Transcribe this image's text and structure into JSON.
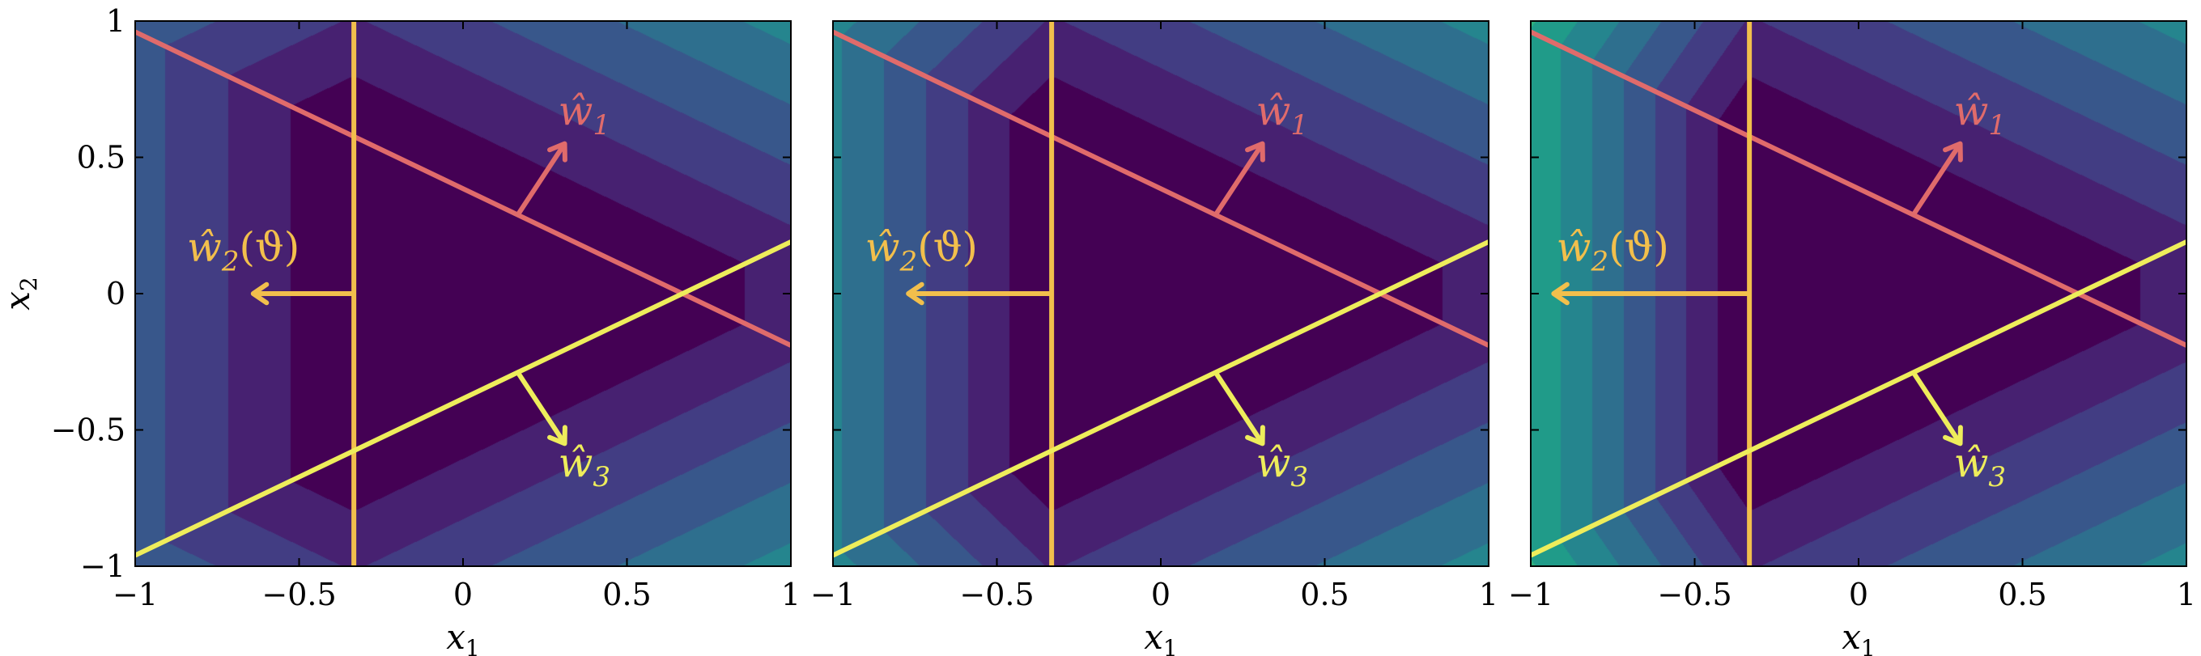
{
  "chart_data": [
    {
      "type": "heatmap",
      "panel": 1,
      "xlabel_main": "x",
      "xlabel_sub": "1",
      "ylabel_main": "x",
      "ylabel_sub": "2",
      "show_y_ticks": true,
      "xlim": [
        -1,
        1
      ],
      "ylim": [
        -1,
        1
      ],
      "x_ticks": [
        {
          "v": -1,
          "label": "−1"
        },
        {
          "v": -0.5,
          "label": "−0.5"
        },
        {
          "v": 0,
          "label": "0"
        },
        {
          "v": 0.5,
          "label": "0.5"
        },
        {
          "v": 1,
          "label": "1"
        }
      ],
      "y_ticks": [
        {
          "v": 1,
          "label": "1"
        },
        {
          "v": 0.5,
          "label": "0.5"
        },
        {
          "v": 0,
          "label": "0"
        },
        {
          "v": -0.5,
          "label": "−0.5"
        },
        {
          "v": -1,
          "label": "−1"
        }
      ],
      "w2_weight": 1.0,
      "contour_levels": 12,
      "color_max_value": 2.3,
      "lines": [
        {
          "name": "line-w1",
          "color": "#e06b6b",
          "x": [
            -1,
            1
          ],
          "y": [
            0.96,
            -0.19
          ]
        },
        {
          "name": "line-w2",
          "color": "#f2bf4c",
          "x": [
            -0.333,
            -0.333
          ],
          "y": [
            -1,
            1
          ]
        },
        {
          "name": "line-w3",
          "color": "#eeed5b",
          "x": [
            -1,
            1
          ],
          "y": [
            -0.96,
            0.19
          ]
        }
      ],
      "vectors": [
        {
          "name": "w1",
          "color": "#e06b6b",
          "from": [
            0.167,
            0.289
          ],
          "to": [
            0.31,
            0.55
          ],
          "label_main": "ŵ",
          "label_sub": "1",
          "label_suffix": "",
          "label_pos": [
            0.37,
            0.62
          ]
        },
        {
          "name": "w2",
          "color": "#f2bf4c",
          "from": [
            -0.333,
            0
          ],
          "to": [
            -0.64,
            0
          ],
          "label_main": "ŵ",
          "label_sub": "2",
          "label_suffix": "(ϑ)",
          "label_pos": [
            -0.67,
            0.12
          ]
        },
        {
          "name": "w3",
          "color": "#eeed5b",
          "from": [
            0.167,
            -0.289
          ],
          "to": [
            0.31,
            -0.55
          ],
          "label_main": "ŵ",
          "label_sub": "3",
          "label_suffix": "",
          "label_pos": [
            0.37,
            -0.67
          ]
        }
      ]
    },
    {
      "type": "heatmap",
      "panel": 2,
      "xlabel_main": "x",
      "xlabel_sub": "1",
      "ylabel_main": "",
      "ylabel_sub": "",
      "show_y_ticks": false,
      "xlim": [
        -1,
        1
      ],
      "ylim": [
        -1,
        1
      ],
      "x_ticks": [
        {
          "v": -1,
          "label": "−1"
        },
        {
          "v": -0.5,
          "label": "−0.5"
        },
        {
          "v": 0,
          "label": "0"
        },
        {
          "v": 0.5,
          "label": "0.5"
        },
        {
          "v": 1,
          "label": "1"
        }
      ],
      "y_ticks": [
        {
          "v": 1,
          "label": ""
        },
        {
          "v": 0.5,
          "label": ""
        },
        {
          "v": 0,
          "label": ""
        },
        {
          "v": -0.5,
          "label": ""
        },
        {
          "v": -1,
          "label": ""
        }
      ],
      "w2_weight": 1.5,
      "contour_levels": 12,
      "color_max_value": 2.3,
      "lines": [
        {
          "name": "line-w1",
          "color": "#e06b6b",
          "x": [
            -1,
            1
          ],
          "y": [
            0.96,
            -0.19
          ]
        },
        {
          "name": "line-w2",
          "color": "#f2bf4c",
          "x": [
            -0.333,
            -0.333
          ],
          "y": [
            -1,
            1
          ]
        },
        {
          "name": "line-w3",
          "color": "#eeed5b",
          "x": [
            -1,
            1
          ],
          "y": [
            -0.96,
            0.19
          ]
        }
      ],
      "vectors": [
        {
          "name": "w1",
          "color": "#e06b6b",
          "from": [
            0.167,
            0.289
          ],
          "to": [
            0.31,
            0.55
          ],
          "label_main": "ŵ",
          "label_sub": "1",
          "label_suffix": "",
          "label_pos": [
            0.37,
            0.62
          ]
        },
        {
          "name": "w2",
          "color": "#f2bf4c",
          "from": [
            -0.333,
            0
          ],
          "to": [
            -0.77,
            0
          ],
          "label_main": "ŵ",
          "label_sub": "2",
          "label_suffix": "(ϑ)",
          "label_pos": [
            -0.73,
            0.12
          ]
        },
        {
          "name": "w3",
          "color": "#eeed5b",
          "from": [
            0.167,
            -0.289
          ],
          "to": [
            0.31,
            -0.55
          ],
          "label_main": "ŵ",
          "label_sub": "3",
          "label_suffix": "",
          "label_pos": [
            0.37,
            -0.67
          ]
        }
      ]
    },
    {
      "type": "heatmap",
      "panel": 3,
      "xlabel_main": "x",
      "xlabel_sub": "1",
      "ylabel_main": "",
      "ylabel_sub": "",
      "show_y_ticks": false,
      "xlim": [
        -1,
        1
      ],
      "ylim": [
        -1,
        1
      ],
      "x_ticks": [
        {
          "v": -1,
          "label": "−1"
        },
        {
          "v": -0.5,
          "label": "−0.5"
        },
        {
          "v": 0,
          "label": "0"
        },
        {
          "v": 0.5,
          "label": "0.5"
        },
        {
          "v": 1,
          "label": "1"
        }
      ],
      "y_ticks": [
        {
          "v": 1,
          "label": ""
        },
        {
          "v": 0.5,
          "label": ""
        },
        {
          "v": 0,
          "label": ""
        },
        {
          "v": -0.5,
          "label": ""
        },
        {
          "v": -1,
          "label": ""
        }
      ],
      "w2_weight": 2.0,
      "contour_levels": 12,
      "color_max_value": 2.3,
      "lines": [
        {
          "name": "line-w1",
          "color": "#e06b6b",
          "x": [
            -1,
            1
          ],
          "y": [
            0.96,
            -0.19
          ]
        },
        {
          "name": "line-w2",
          "color": "#f2bf4c",
          "x": [
            -0.333,
            -0.333
          ],
          "y": [
            -1,
            1
          ]
        },
        {
          "name": "line-w3",
          "color": "#eeed5b",
          "x": [
            -1,
            1
          ],
          "y": [
            -0.96,
            0.19
          ]
        }
      ],
      "vectors": [
        {
          "name": "w1",
          "color": "#e06b6b",
          "from": [
            0.167,
            0.289
          ],
          "to": [
            0.31,
            0.55
          ],
          "label_main": "ŵ",
          "label_sub": "1",
          "label_suffix": "",
          "label_pos": [
            0.37,
            0.62
          ]
        },
        {
          "name": "w2",
          "color": "#f2bf4c",
          "from": [
            -0.333,
            0
          ],
          "to": [
            -0.93,
            0
          ],
          "label_main": "ŵ",
          "label_sub": "2",
          "label_suffix": "(ϑ)",
          "label_pos": [
            -0.75,
            0.12
          ]
        },
        {
          "name": "w3",
          "color": "#eeed5b",
          "from": [
            0.167,
            -0.289
          ],
          "to": [
            0.31,
            -0.55
          ],
          "label_main": "ŵ",
          "label_sub": "3",
          "label_suffix": "",
          "label_pos": [
            0.37,
            -0.67
          ]
        }
      ]
    }
  ],
  "colormap": [
    "#440154",
    "#482878",
    "#3e4989",
    "#31688e",
    "#26828e",
    "#1f9e89",
    "#35b779",
    "#6ece58",
    "#b5de2b",
    "#fde725"
  ]
}
